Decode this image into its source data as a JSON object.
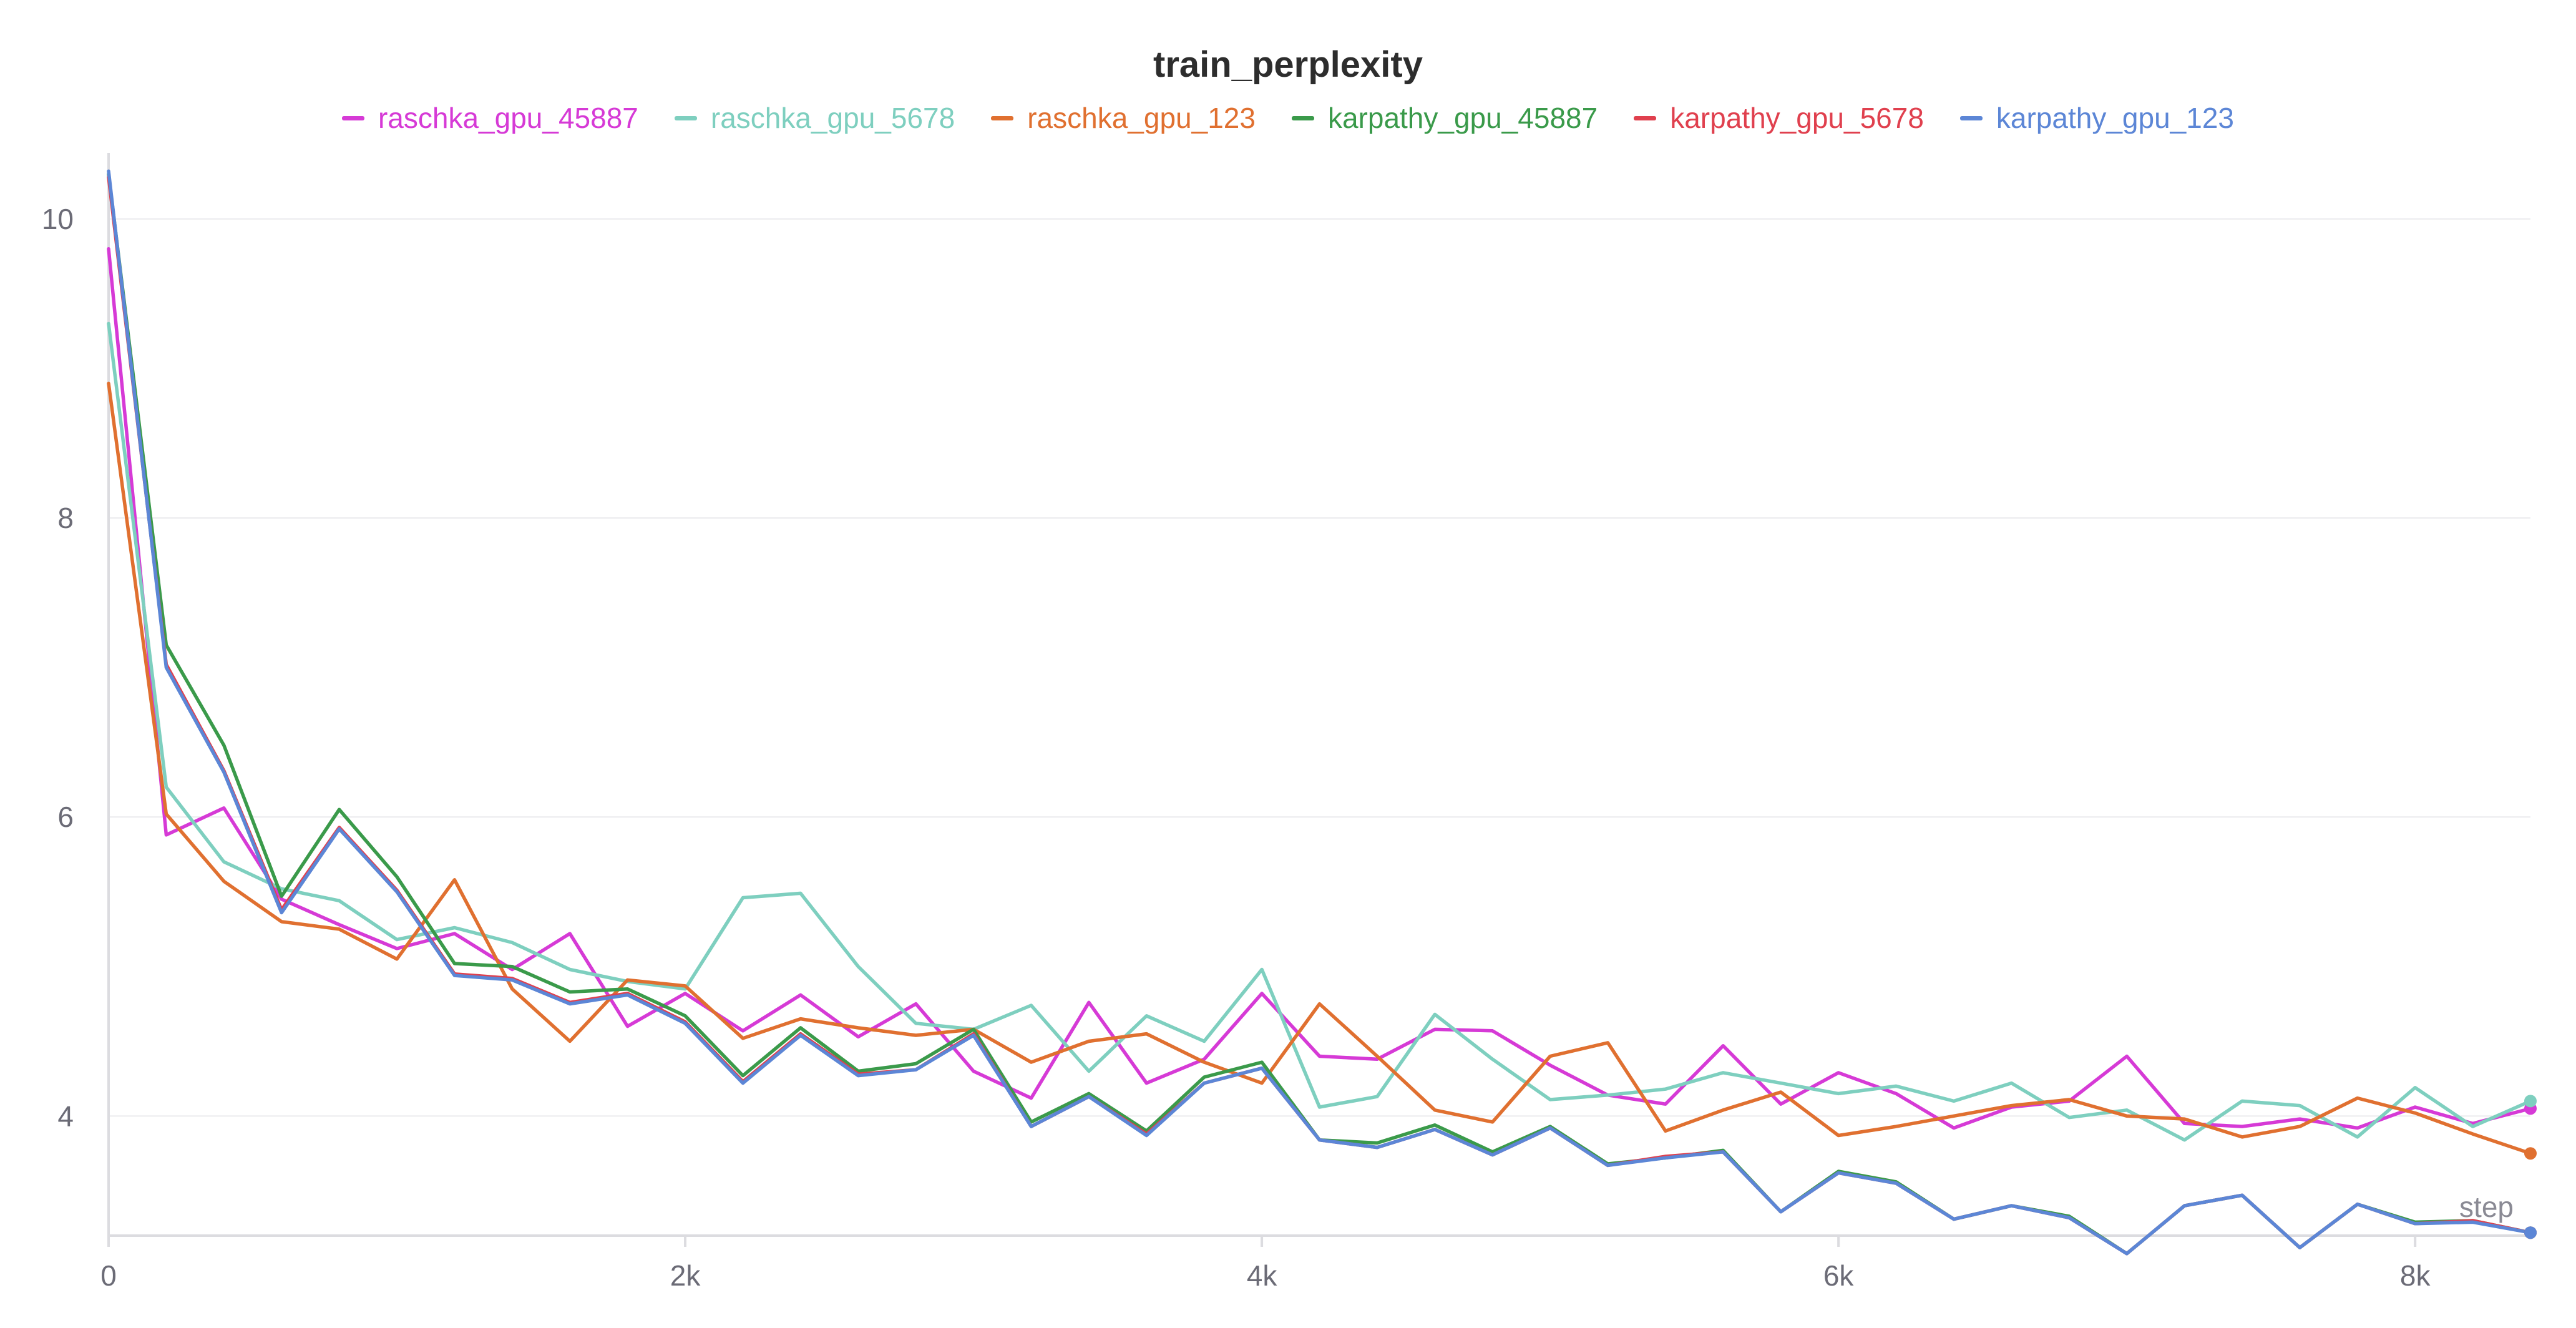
{
  "chart_data": {
    "type": "line",
    "title": "train_perplexity",
    "xlabel": "step",
    "ylabel": "",
    "xlim": [
      0,
      8400
    ],
    "ylim": [
      3.2,
      10.4
    ],
    "grid": true,
    "legend_position": "top-center",
    "x_ticks": [
      {
        "value": 0,
        "label": "0"
      },
      {
        "value": 2000,
        "label": "2k"
      },
      {
        "value": 4000,
        "label": "4k"
      },
      {
        "value": 6000,
        "label": "6k"
      },
      {
        "value": 8000,
        "label": "8k"
      }
    ],
    "y_ticks": [
      {
        "value": 4,
        "label": "4"
      },
      {
        "value": 6,
        "label": "6"
      },
      {
        "value": 8,
        "label": "8"
      },
      {
        "value": 10,
        "label": "10"
      }
    ],
    "x": [
      0,
      200,
      400,
      600,
      800,
      1000,
      1200,
      1400,
      1600,
      1800,
      2000,
      2200,
      2400,
      2600,
      2800,
      3000,
      3200,
      3400,
      3600,
      3800,
      4000,
      4200,
      4400,
      4600,
      4800,
      5000,
      5200,
      5400,
      5600,
      5800,
      6000,
      6200,
      6400,
      6600,
      6800,
      7000,
      7200,
      7400,
      7600,
      7800,
      8000,
      8200,
      8400
    ],
    "series": [
      {
        "name": "raschka_gpu_45887",
        "color": "#d63ad6",
        "values": [
          9.8,
          5.88,
          6.06,
          5.45,
          5.28,
          5.12,
          5.22,
          4.98,
          5.22,
          4.6,
          4.82,
          4.57,
          4.81,
          4.53,
          4.75,
          4.3,
          4.12,
          4.76,
          4.22,
          4.38,
          4.82,
          4.4,
          4.38,
          4.58,
          4.57,
          4.34,
          4.14,
          4.08,
          4.47,
          4.08,
          4.29,
          4.15,
          3.92,
          4.06,
          4.1,
          4.4,
          3.95,
          3.93,
          3.98,
          3.92,
          4.06,
          3.95,
          4.05
        ]
      },
      {
        "name": "raschka_gpu_5678",
        "color": "#7ecfbf",
        "values": [
          9.3,
          6.2,
          5.7,
          5.52,
          5.44,
          5.18,
          5.26,
          5.16,
          4.98,
          4.9,
          4.85,
          5.46,
          5.49,
          5.0,
          4.62,
          4.58,
          4.74,
          4.3,
          4.67,
          4.5,
          4.98,
          4.06,
          4.13,
          4.68,
          4.38,
          4.11,
          4.14,
          4.18,
          4.29,
          4.22,
          4.15,
          4.2,
          4.1,
          4.22,
          3.99,
          4.04,
          3.84,
          4.1,
          4.07,
          3.86,
          4.19,
          3.93,
          4.1
        ]
      },
      {
        "name": "raschka_gpu_123",
        "color": "#e07030",
        "values": [
          8.9,
          6.02,
          5.57,
          5.3,
          5.25,
          5.05,
          5.58,
          4.85,
          4.5,
          4.91,
          4.87,
          4.52,
          4.65,
          4.59,
          4.54,
          4.58,
          4.36,
          4.5,
          4.55,
          4.36,
          4.22,
          4.75,
          4.4,
          4.04,
          3.96,
          4.4,
          4.49,
          3.9,
          4.04,
          4.16,
          3.87,
          3.93,
          4.0,
          4.07,
          4.11,
          4.0,
          3.98,
          3.86,
          3.93,
          4.12,
          4.02,
          3.88,
          3.75
        ]
      },
      {
        "name": "karpathy_gpu_45887",
        "color": "#3a9a4a",
        "values": [
          10.3,
          7.15,
          6.48,
          5.47,
          6.05,
          5.6,
          5.02,
          5.0,
          4.83,
          4.85,
          4.67,
          4.27,
          4.59,
          4.3,
          4.35,
          4.58,
          3.96,
          4.15,
          3.9,
          4.26,
          4.36,
          3.84,
          3.82,
          3.94,
          3.76,
          3.93,
          3.68,
          3.72,
          3.77,
          3.36,
          3.63,
          3.56,
          3.31,
          3.4,
          3.33,
          3.08,
          3.4,
          3.47,
          3.12,
          3.41,
          3.29,
          3.3,
          3.22
        ]
      },
      {
        "name": "karpathy_gpu_5678",
        "color": "#e0404e",
        "values": [
          10.28,
          7.02,
          6.31,
          5.38,
          5.93,
          5.51,
          4.95,
          4.92,
          4.76,
          4.82,
          4.63,
          4.23,
          4.55,
          4.28,
          4.31,
          4.55,
          3.93,
          4.13,
          3.88,
          4.22,
          4.32,
          3.84,
          3.79,
          3.91,
          3.74,
          3.92,
          3.67,
          3.73,
          3.76,
          3.36,
          3.62,
          3.55,
          3.31,
          3.4,
          3.32,
          3.08,
          3.4,
          3.47,
          3.12,
          3.41,
          3.28,
          3.3,
          3.22
        ]
      },
      {
        "name": "karpathy_gpu_123",
        "color": "#5c86d6",
        "values": [
          10.32,
          7.0,
          6.3,
          5.36,
          5.92,
          5.5,
          4.94,
          4.91,
          4.75,
          4.81,
          4.62,
          4.22,
          4.54,
          4.27,
          4.31,
          4.54,
          3.93,
          4.13,
          3.87,
          4.22,
          4.32,
          3.84,
          3.79,
          3.91,
          3.74,
          3.92,
          3.67,
          3.72,
          3.76,
          3.36,
          3.62,
          3.55,
          3.31,
          3.4,
          3.32,
          3.08,
          3.4,
          3.47,
          3.12,
          3.41,
          3.28,
          3.29,
          3.22
        ]
      }
    ]
  }
}
